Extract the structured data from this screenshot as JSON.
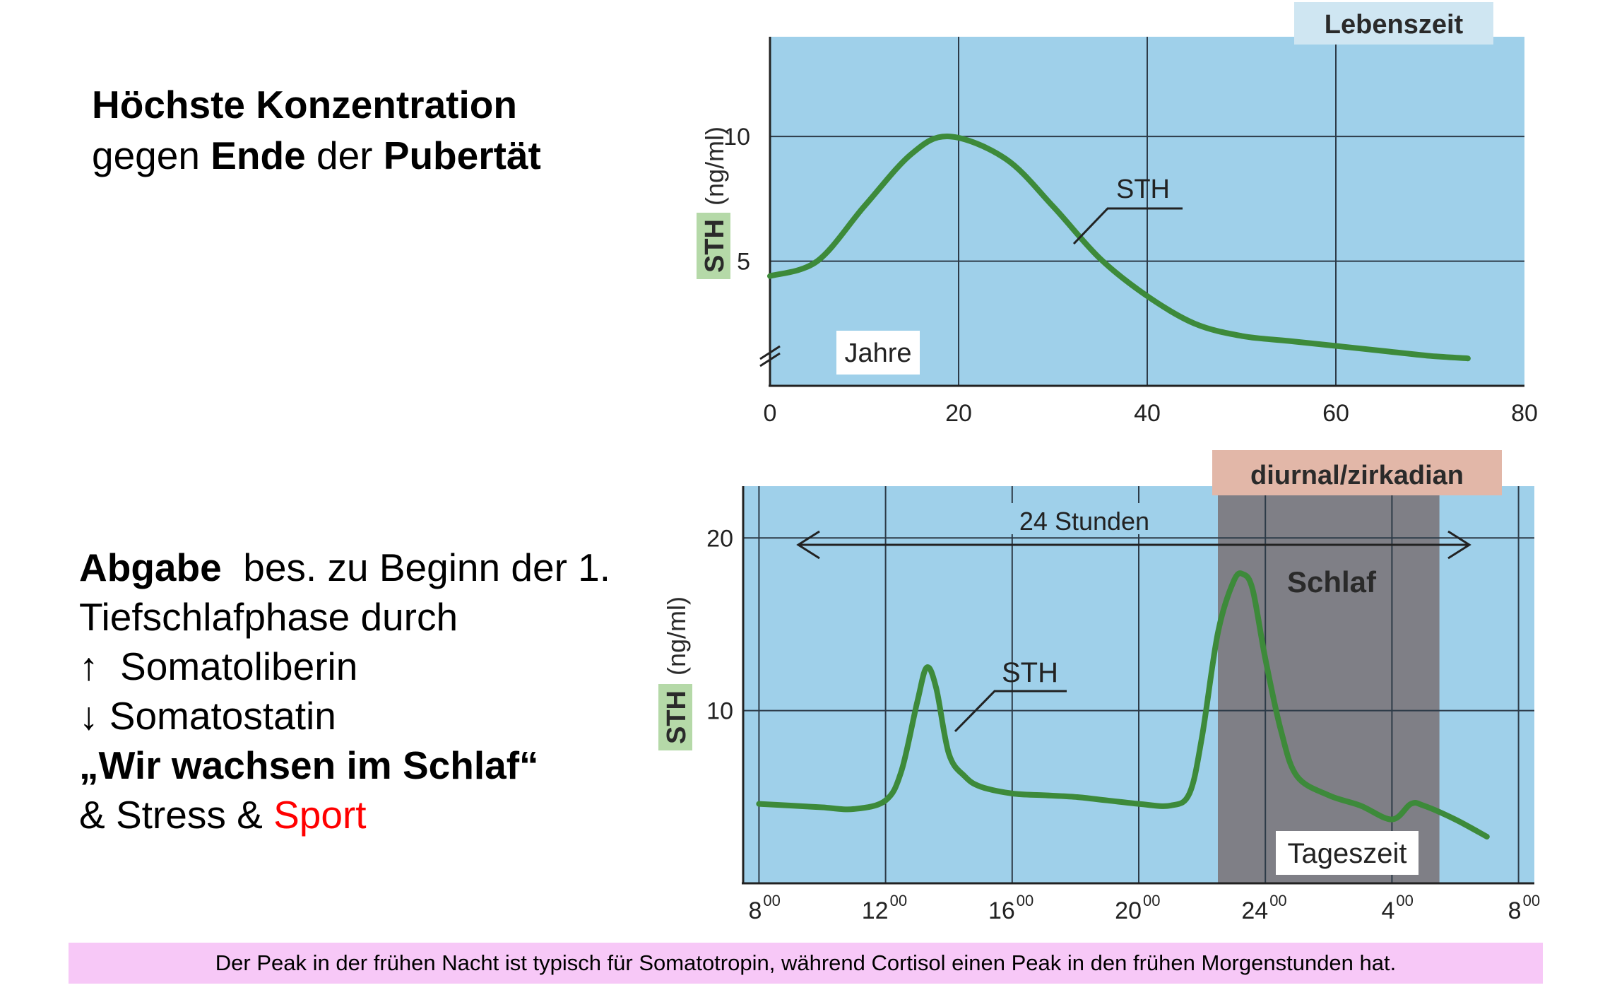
{
  "text_left_top": {
    "line1_bold": "Höchste Konzentration",
    "line2_a": "gegen ",
    "line2_b": "Ende",
    "line2_c": " der ",
    "line2_d": "Pubertät"
  },
  "text_left_bottom": {
    "line1_bold": "Abgabe",
    "line1_rest": "  bes. zu Beginn der 1.",
    "line2": "Tiefschlafphase durch",
    "line3": "↑  Somatoliberin",
    "line4": "↓ Somatostatin",
    "line5_bold": "„Wir wachsen im Schlaf“",
    "line6_a": "& Stress & ",
    "line6_red": "Sport"
  },
  "footer": "Der Peak in der frühen Nacht ist typisch für Somatotropin, während Cortisol einen Peak in den frühen Morgenstunden hat.",
  "colors": {
    "panel": "#9fd0ea",
    "curve": "#3d8a3a",
    "sleep": "#7f7f86",
    "ylabel_bg": "#b5d9a8",
    "tag1_bg": "#cfe6f2",
    "tag2_bg": "#e2b7a8",
    "footer_bg": "#f7c8f7",
    "sport": "#ff0000"
  },
  "chart_data": [
    {
      "type": "line",
      "tag": "Lebenszeit",
      "ylabel_sth": "STH",
      "ylabel_unit": "(ng/ml)",
      "xlabel": "Jahre",
      "series_label": "STH",
      "xlim": [
        0,
        80
      ],
      "ylim": [
        0,
        14
      ],
      "xticks": [
        "0",
        "20",
        "40",
        "60",
        "80"
      ],
      "xtick_values": [
        0,
        20,
        40,
        60,
        80
      ],
      "yticks": [
        "5",
        "10"
      ],
      "ytick_values": [
        5,
        10
      ],
      "series": [
        {
          "x": [
            0,
            5,
            10,
            15,
            19,
            25,
            30,
            35,
            40,
            45,
            50,
            55,
            60,
            65,
            70,
            74
          ],
          "y": [
            4.4,
            5.0,
            7.2,
            9.3,
            10.0,
            9.1,
            7.2,
            5.1,
            3.6,
            2.5,
            2.0,
            1.8,
            1.6,
            1.4,
            1.2,
            1.1
          ]
        }
      ]
    },
    {
      "type": "line",
      "tag": "diurnal/zirkadian",
      "ylabel_sth": "STH",
      "ylabel_unit": "(ng/ml)",
      "xlabel": "Tageszeit",
      "series_label": "STH",
      "annotation_range": "24 Stunden",
      "shaded_label": "Schlaf",
      "shaded_range": [
        22.5,
        29.5
      ],
      "xlim": [
        7.5,
        32.5
      ],
      "ylim": [
        0,
        23
      ],
      "xtick_base": [
        "8",
        "12",
        "16",
        "20",
        "24",
        "4",
        "8"
      ],
      "xtick_sup": [
        "00",
        "00",
        "00",
        "00",
        "00",
        "00",
        "00"
      ],
      "xtick_values": [
        8,
        12,
        16,
        20,
        24,
        28,
        32
      ],
      "yticks": [
        "10",
        "20"
      ],
      "ytick_values": [
        10,
        20
      ],
      "series": [
        {
          "x": [
            8,
            9,
            10,
            11,
            12,
            12.5,
            13,
            13.3,
            13.6,
            14,
            14.5,
            15,
            16,
            17,
            18,
            19,
            20,
            21,
            21.6,
            22,
            22.5,
            23,
            23.3,
            23.6,
            24,
            24.5,
            25,
            26,
            27,
            28,
            28.6,
            29,
            30,
            31
          ],
          "y": [
            4.6,
            4.5,
            4.4,
            4.3,
            4.8,
            6.5,
            10.5,
            12.5,
            11.3,
            7.5,
            6.2,
            5.6,
            5.2,
            5.1,
            5.0,
            4.8,
            4.6,
            4.5,
            5.2,
            8.5,
            14.5,
            17.5,
            17.9,
            17.0,
            13.0,
            8.8,
            6.2,
            5.1,
            4.5,
            3.7,
            4.6,
            4.5,
            3.7,
            2.7
          ]
        }
      ]
    }
  ]
}
